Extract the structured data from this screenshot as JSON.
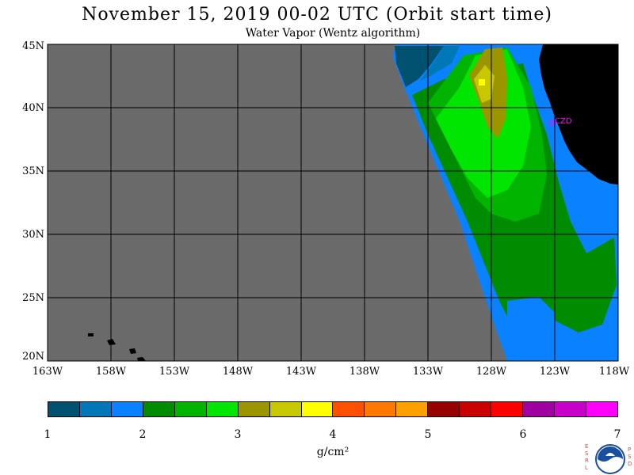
{
  "header": {
    "title": "November 15, 2019  00-02 UTC  (Orbit start time)",
    "subtitle": "Water Vapor (Wentz algorithm)"
  },
  "map": {
    "lat_labels": [
      "45N",
      "40N",
      "35N",
      "30N",
      "25N",
      "20N"
    ],
    "lon_labels": [
      "163W",
      "158W",
      "153W",
      "148W",
      "143W",
      "138W",
      "133W",
      "128W",
      "123W",
      "118W"
    ],
    "station_label": "CZD",
    "colors": {
      "background": "#6a6a6a",
      "land": "#000000",
      "station": "#ff00ff"
    }
  },
  "colorbar": {
    "ticks": [
      "1",
      "2",
      "3",
      "4",
      "5",
      "6",
      "7"
    ],
    "units": "g/cm²",
    "colors": [
      "#005070",
      "#0078b8",
      "#0a82ff",
      "#008c00",
      "#00b400",
      "#00e600",
      "#9b9600",
      "#c8c800",
      "#ffff00",
      "#ff5000",
      "#ff7800",
      "#ffa000",
      "#960000",
      "#c80000",
      "#ff0000",
      "#a000a0",
      "#c800c8",
      "#ff00ff"
    ]
  },
  "logo": {
    "left_letters": [
      "E",
      "S",
      "R",
      "L"
    ],
    "right_letters": [
      "P",
      "S",
      "D"
    ],
    "center": "NOAA"
  }
}
